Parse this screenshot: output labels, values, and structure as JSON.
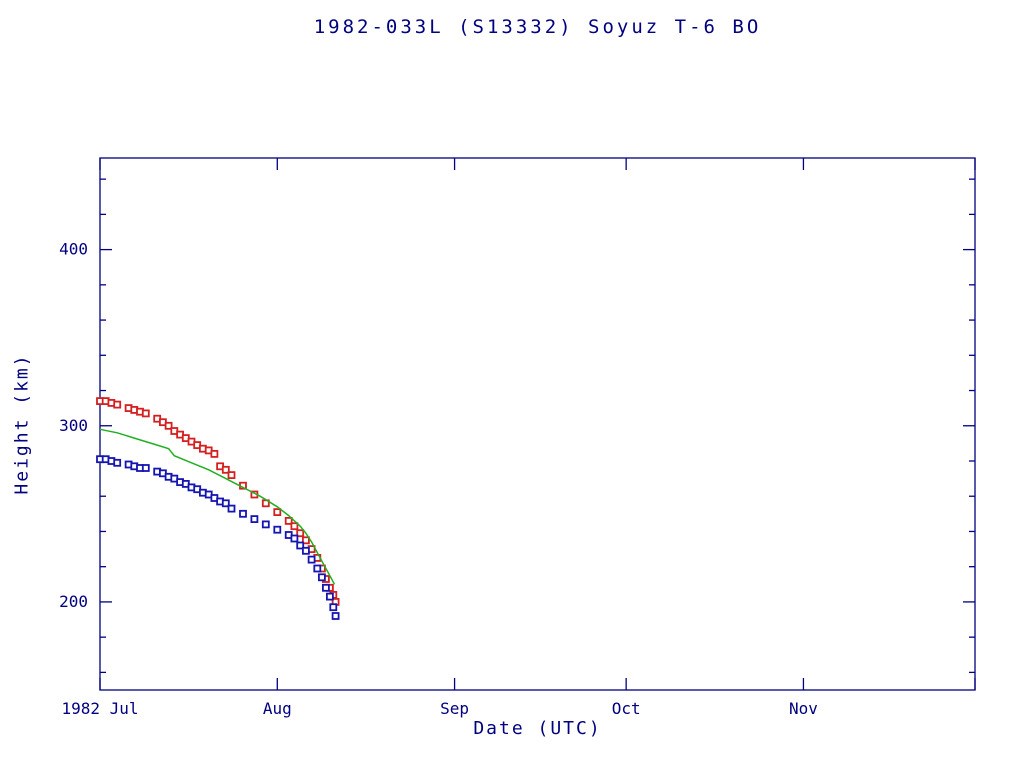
{
  "title": "1982-033L (S13332) Soyuz T-6 BO",
  "colors": {
    "axis": "#000080",
    "apogee": "#d42020",
    "perigee": "#1515b0",
    "mean": "#22b022",
    "background": "#ffffff"
  },
  "chart_data": {
    "type": "scatter",
    "title": "1982-033L (S13332) Soyuz T-6 BO",
    "xlabel": "Date (UTC)",
    "ylabel": "Height (km)",
    "grid": false,
    "legend": false,
    "x_axis": {
      "unit": "days since 1982-07-01",
      "xlim_days": [
        0,
        153
      ],
      "tick_days": [
        0,
        31,
        62,
        92,
        123,
        153
      ],
      "tick_labels": [
        "1982 Jul",
        "Aug",
        "Sep",
        "Oct",
        "Nov",
        ""
      ]
    },
    "y_axis": {
      "ylim": [
        150,
        452
      ],
      "ticks": [
        200,
        300,
        400
      ],
      "tick_labels": [
        "200",
        "300",
        "400"
      ],
      "minor_step": 20
    },
    "series": [
      {
        "name": "apogee-height",
        "type": "scatter",
        "marker": "open-square",
        "color": "#d42020",
        "points": [
          [
            0,
            314
          ],
          [
            1,
            314
          ],
          [
            2,
            313
          ],
          [
            3,
            312
          ],
          [
            5,
            310
          ],
          [
            6,
            309
          ],
          [
            7,
            308
          ],
          [
            8,
            307
          ],
          [
            10,
            304
          ],
          [
            11,
            302
          ],
          [
            12,
            300
          ],
          [
            13,
            297
          ],
          [
            14,
            295
          ],
          [
            15,
            293
          ],
          [
            16,
            291
          ],
          [
            17,
            289
          ],
          [
            18,
            287
          ],
          [
            19,
            286
          ],
          [
            20,
            284
          ],
          [
            21,
            277
          ],
          [
            22,
            275
          ],
          [
            23,
            272
          ],
          [
            25,
            266
          ],
          [
            27,
            261
          ],
          [
            29,
            256
          ],
          [
            31,
            251
          ],
          [
            33,
            246
          ],
          [
            34,
            243
          ],
          [
            35,
            239
          ],
          [
            36,
            235
          ],
          [
            37,
            230
          ],
          [
            38,
            225
          ],
          [
            38.8,
            219
          ],
          [
            39.5,
            213
          ],
          [
            40.2,
            208
          ],
          [
            40.8,
            204
          ],
          [
            41.2,
            200
          ]
        ]
      },
      {
        "name": "perigee-height",
        "type": "scatter",
        "marker": "open-square",
        "color": "#1515b0",
        "points": [
          [
            0,
            281
          ],
          [
            1,
            281
          ],
          [
            2,
            280
          ],
          [
            3,
            279
          ],
          [
            5,
            278
          ],
          [
            6,
            277
          ],
          [
            7,
            276
          ],
          [
            8,
            276
          ],
          [
            10,
            274
          ],
          [
            11,
            273
          ],
          [
            12,
            271
          ],
          [
            13,
            270
          ],
          [
            14,
            268
          ],
          [
            15,
            267
          ],
          [
            16,
            265
          ],
          [
            17,
            264
          ],
          [
            18,
            262
          ],
          [
            19,
            261
          ],
          [
            20,
            259
          ],
          [
            21,
            257
          ],
          [
            22,
            256
          ],
          [
            23,
            253
          ],
          [
            25,
            250
          ],
          [
            27,
            247
          ],
          [
            29,
            244
          ],
          [
            31,
            241
          ],
          [
            33,
            238
          ],
          [
            34,
            236
          ],
          [
            35,
            232
          ],
          [
            36,
            229
          ],
          [
            37,
            224
          ],
          [
            38,
            219
          ],
          [
            38.8,
            214
          ],
          [
            39.5,
            208
          ],
          [
            40.2,
            203
          ],
          [
            40.8,
            197
          ],
          [
            41.2,
            192
          ]
        ]
      },
      {
        "name": "mean-height",
        "type": "line",
        "color": "#22b022",
        "points": [
          [
            0,
            298
          ],
          [
            3,
            296
          ],
          [
            6,
            293
          ],
          [
            9,
            290
          ],
          [
            12,
            287
          ],
          [
            13,
            283
          ],
          [
            16,
            279
          ],
          [
            19,
            275
          ],
          [
            22,
            270
          ],
          [
            25,
            265
          ],
          [
            28,
            260
          ],
          [
            31,
            254
          ],
          [
            33,
            249
          ],
          [
            35,
            243
          ],
          [
            36,
            239
          ],
          [
            37,
            234
          ],
          [
            38,
            228
          ],
          [
            39,
            222
          ],
          [
            40,
            216
          ],
          [
            41,
            210
          ]
        ]
      }
    ]
  }
}
